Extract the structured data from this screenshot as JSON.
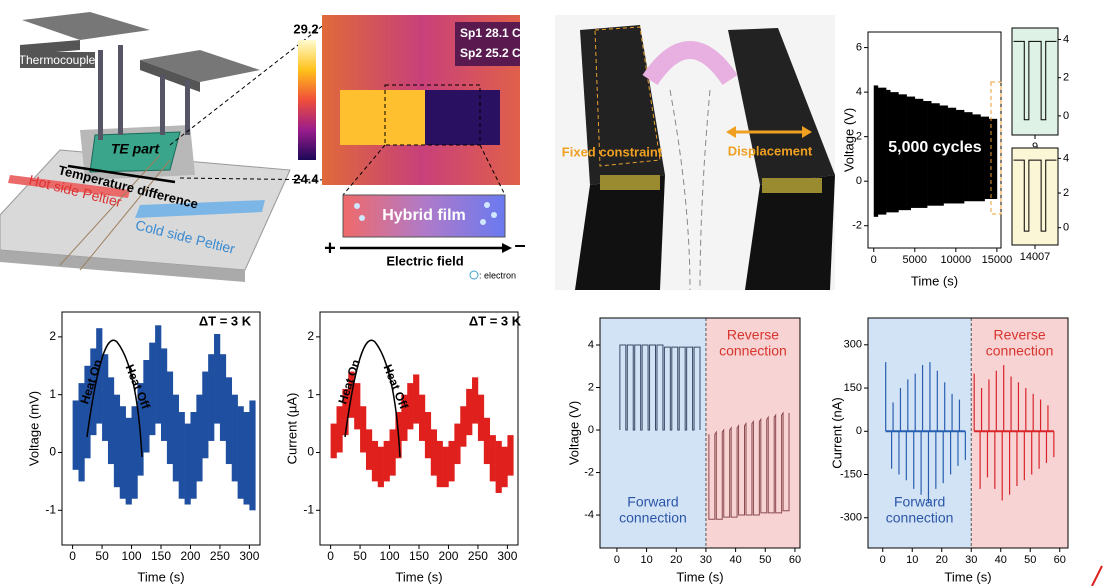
{
  "chart_data": [
    {
      "type": "band",
      "ylabel": "Voltage (V)",
      "xlabel": "Time (s)",
      "annotation": "5,000 cycles",
      "color": "#000000",
      "xlim": [
        -700,
        15500
      ],
      "ylim": [
        -3,
        6.7
      ],
      "xticks": [
        0,
        5000,
        10000,
        15000
      ],
      "yticks": [
        -2,
        0,
        2,
        4,
        6
      ],
      "x": [
        0,
        500,
        1000,
        1500,
        2000,
        2500,
        3000,
        3500,
        4000,
        4500,
        5000,
        5500,
        6000,
        6500,
        7000,
        7500,
        8000,
        8500,
        9000,
        9500,
        10000,
        10500,
        11000,
        11500,
        12000,
        12500,
        13000,
        13500,
        14000,
        14500
      ],
      "upper": [
        4.3,
        4.2,
        4.2,
        4.1,
        4.0,
        4.0,
        3.9,
        3.9,
        3.8,
        3.8,
        3.7,
        3.7,
        3.6,
        3.6,
        3.5,
        3.5,
        3.4,
        3.4,
        3.3,
        3.3,
        3.2,
        3.2,
        3.1,
        3.1,
        3.0,
        3.0,
        2.9,
        2.9,
        2.8,
        2.8
      ],
      "lower": [
        -1.6,
        -1.5,
        -1.5,
        -1.4,
        -1.4,
        -1.4,
        -1.3,
        -1.3,
        -1.3,
        -1.2,
        -1.2,
        -1.2,
        -1.2,
        -1.1,
        -1.1,
        -1.1,
        -1.1,
        -1.0,
        -1.0,
        -1.0,
        -1.0,
        -1.0,
        -0.9,
        -0.9,
        -0.9,
        -0.9,
        -0.9,
        -0.8,
        -0.8,
        -0.8
      ]
    },
    {
      "type": "line",
      "color": "#000000",
      "background": "#dff2e6",
      "xlim": [
        7.5,
        10.5
      ],
      "ylim": [
        -1,
        4.6
      ],
      "xticks": [
        9
      ],
      "yticks": [
        0,
        2,
        4
      ],
      "x": [
        7.6,
        8.3,
        8.3,
        8.6,
        8.6,
        9.4,
        9.4,
        9.7,
        9.7,
        10.4
      ],
      "values": [
        3.9,
        3.9,
        -0.2,
        -0.2,
        3.9,
        3.9,
        -0.2,
        -0.2,
        3.9,
        3.9
      ]
    },
    {
      "type": "line",
      "color": "#000000",
      "background": "#fbf6d5",
      "xlim": [
        14005.5,
        14008.5
      ],
      "ylim": [
        -1,
        4.6
      ],
      "xticks": [
        14007
      ],
      "yticks": [
        0,
        2,
        4
      ],
      "x": [
        14005.6,
        14006.3,
        14006.3,
        14006.6,
        14006.6,
        14007.4,
        14007.4,
        14007.7,
        14007.7,
        14008.4
      ],
      "values": [
        3.9,
        3.9,
        -0.2,
        -0.2,
        3.9,
        3.9,
        -0.2,
        -0.2,
        3.9,
        3.9
      ]
    },
    {
      "type": "band",
      "ylabel": "Voltage (mV)",
      "xlabel": "Time (s)",
      "annotation": "ΔT = 3 K",
      "arrow_labels": [
        "Heat On",
        "Heat Off"
      ],
      "color": "#1f4fa0",
      "xlim": [
        -18,
        318
      ],
      "ylim": [
        -1.6,
        2.43
      ],
      "xticks": [
        0,
        50,
        100,
        150,
        200,
        250,
        300
      ],
      "yticks": [
        -1,
        0,
        1,
        2
      ],
      "x": [
        0,
        10,
        20,
        30,
        40,
        50,
        60,
        70,
        80,
        90,
        100,
        110,
        120,
        130,
        140,
        150,
        160,
        170,
        180,
        190,
        200,
        210,
        220,
        230,
        240,
        250,
        260,
        270,
        280,
        290,
        300
      ],
      "upper": [
        0.9,
        1.2,
        1.5,
        1.8,
        2.15,
        1.7,
        1.3,
        1.0,
        0.8,
        0.6,
        0.8,
        1.2,
        1.6,
        1.9,
        2.2,
        1.8,
        1.4,
        1.0,
        0.7,
        0.5,
        0.7,
        1.0,
        1.4,
        1.7,
        2.05,
        1.7,
        1.3,
        1.0,
        0.8,
        0.7,
        0.9
      ],
      "lower": [
        -0.3,
        -0.5,
        -0.1,
        0.3,
        0.5,
        0.2,
        -0.2,
        -0.6,
        -0.8,
        -0.9,
        -0.8,
        -0.4,
        0.0,
        0.3,
        0.5,
        0.2,
        -0.2,
        -0.5,
        -0.8,
        -0.9,
        -0.8,
        -0.5,
        -0.1,
        0.2,
        0.5,
        0.2,
        -0.2,
        -0.5,
        -0.8,
        -0.9,
        -1.0
      ]
    },
    {
      "type": "band",
      "ylabel": "Current (µA)",
      "xlabel": "Time (s)",
      "annotation": "ΔT = 3 K",
      "arrow_labels": [
        "Heat On",
        "Heat Off"
      ],
      "color": "#e0201c",
      "xlim": [
        -18,
        318
      ],
      "ylim": [
        -1.6,
        2.43
      ],
      "xticks": [
        0,
        50,
        100,
        150,
        200,
        250,
        300
      ],
      "yticks": [
        -1,
        0,
        1,
        2
      ],
      "x": [
        0,
        10,
        20,
        30,
        40,
        50,
        60,
        70,
        80,
        90,
        100,
        110,
        120,
        130,
        140,
        150,
        160,
        170,
        180,
        190,
        200,
        210,
        220,
        230,
        240,
        250,
        260,
        270,
        280,
        290,
        300
      ],
      "upper": [
        0.5,
        0.8,
        1.1,
        1.4,
        1.2,
        0.8,
        0.4,
        0.2,
        0.1,
        0.2,
        0.4,
        0.7,
        1.0,
        1.2,
        1.35,
        1.0,
        0.7,
        0.4,
        0.2,
        0.1,
        0.2,
        0.5,
        0.8,
        1.1,
        1.3,
        1.0,
        0.6,
        0.3,
        0.2,
        0.1,
        0.3
      ],
      "lower": [
        -0.1,
        0.0,
        0.3,
        0.6,
        0.4,
        0.0,
        -0.3,
        -0.5,
        -0.6,
        -0.5,
        -0.4,
        -0.1,
        0.2,
        0.4,
        0.5,
        0.2,
        -0.1,
        -0.4,
        -0.6,
        -0.6,
        -0.5,
        -0.2,
        0.1,
        0.3,
        0.5,
        0.2,
        -0.2,
        -0.5,
        -0.7,
        -0.6,
        -0.4
      ]
    },
    {
      "type": "line",
      "ylabel": "Voltage (V)",
      "xlabel": "Time (s)",
      "split": 30,
      "region_labels": [
        [
          "Forward",
          "connection"
        ],
        [
          "Reverse",
          "connection"
        ]
      ],
      "region_colors": [
        "#d3e3f6",
        "#f8d3d4"
      ],
      "region_text_colors": [
        "#2a56a8",
        "#d8332c"
      ],
      "xlim": [
        -5.7,
        61.7
      ],
      "ylim": [
        -5.55,
        5.27
      ],
      "xticks": [
        0,
        10,
        20,
        30,
        40,
        50,
        60
      ],
      "yticks": [
        -4,
        -2,
        0,
        2,
        4
      ],
      "series": [
        {
          "color": "#3a4a66",
          "x": [
            1,
            1,
            3,
            3,
            3.5,
            3.5,
            5.5,
            5.5,
            6,
            6,
            8,
            8,
            8.5,
            8.5,
            10.5,
            10.5,
            11,
            11,
            13,
            13,
            13.5,
            13.5,
            15.5,
            15.5,
            16,
            16,
            18,
            18,
            18.5,
            18.5,
            20.5,
            20.5,
            21,
            21,
            23,
            23,
            23.5,
            23.5,
            25.5,
            25.5,
            26,
            26,
            28,
            28
          ],
          "values": [
            0,
            4,
            4,
            0,
            0,
            4,
            4,
            0,
            0,
            4,
            4,
            0,
            0,
            4,
            4,
            0,
            0,
            4,
            4,
            0,
            0,
            4,
            4,
            0,
            0,
            3.9,
            3.9,
            0,
            0,
            3.9,
            3.9,
            0,
            0,
            3.9,
            3.9,
            0,
            0,
            3.9,
            3.9,
            0,
            0,
            3.9,
            3.9,
            0
          ]
        },
        {
          "color": "#8a4a4e",
          "x": [
            31,
            31,
            33,
            33,
            33.5,
            33.5,
            35.5,
            35.5,
            36,
            36,
            38,
            38,
            38.5,
            38.5,
            40.5,
            40.5,
            41,
            41,
            43,
            43,
            43.5,
            43.5,
            45.5,
            45.5,
            46,
            46,
            48,
            48,
            48.5,
            48.5,
            50.5,
            50.5,
            51,
            51,
            53,
            53,
            53.5,
            53.5,
            55.5,
            55.5,
            56,
            56,
            58,
            58
          ],
          "values": [
            -0.2,
            -4.2,
            -4.2,
            -0.2,
            -0.1,
            -4.2,
            -4.2,
            -0.1,
            0,
            -4.1,
            -4.1,
            0,
            0.1,
            -4.1,
            -4.1,
            0.1,
            0.2,
            -4.0,
            -4.0,
            0.2,
            0.3,
            -4.0,
            -4.0,
            0.3,
            0.4,
            -4.0,
            -4.0,
            0.4,
            0.5,
            -3.9,
            -3.9,
            0.5,
            0.6,
            -3.9,
            -3.9,
            0.6,
            0.7,
            -3.9,
            -3.9,
            0.7,
            0.8,
            -3.8,
            -3.8,
            0.8
          ]
        }
      ]
    },
    {
      "type": "spike",
      "ylabel": "Current (nA)",
      "xlabel": "Time (s)",
      "split": 30,
      "region_labels": [
        [
          "Forward",
          "connection"
        ],
        [
          "Reverse",
          "connection"
        ]
      ],
      "region_colors": [
        "#d3e3f6",
        "#f8d3d4"
      ],
      "region_text_colors": [
        "#2a56a8",
        "#d8332c"
      ],
      "xlim": [
        -5,
        62.8
      ],
      "ylim": [
        -405,
        393
      ],
      "xticks": [
        0,
        10,
        20,
        30,
        40,
        50,
        60
      ],
      "yticks": [
        -300,
        -150,
        0,
        150,
        300
      ],
      "series": [
        {
          "color": "#2a5fb0",
          "x": [
            1,
            3,
            3.5,
            5.5,
            6,
            8,
            8.5,
            10.5,
            11,
            13,
            13.5,
            15.5,
            16,
            18,
            18.5,
            20.5,
            21,
            23,
            23.5,
            25.5,
            26,
            28
          ],
          "values": [
            240,
            -130,
            100,
            -150,
            150,
            -170,
            180,
            -200,
            200,
            -220,
            230,
            -250,
            240,
            -200,
            210,
            -180,
            170,
            -150,
            130,
            -120,
            110,
            -100
          ]
        },
        {
          "color": "#d8242a",
          "x": [
            31,
            33,
            33.5,
            35.5,
            36,
            38,
            38.5,
            40.5,
            41,
            43,
            43.5,
            45.5,
            46,
            48,
            48.5,
            50.5,
            51,
            53,
            53.5,
            55.5,
            56,
            58
          ],
          "values": [
            200,
            -200,
            150,
            -160,
            180,
            -200,
            210,
            -240,
            230,
            -220,
            190,
            -190,
            170,
            -170,
            150,
            -150,
            130,
            -130,
            110,
            -110,
            90,
            -90
          ]
        }
      ]
    }
  ],
  "diagrams": {
    "setup": {
      "thermocouple": "Thermocouple",
      "te_part": "TE part",
      "temperature_difference": "Temperature difference",
      "hot_side": "Hot side Peltier",
      "cold_side": "Cold side Peltier"
    },
    "thermal": {
      "colorbar": [
        24.4,
        29.2
      ],
      "sp1": "Sp1  28.1 C°",
      "sp2": "Sp2  25.2 C°",
      "film": "Hybrid film",
      "plus": "+",
      "minus": "–",
      "field": "Electric field",
      "electron": ": electron"
    },
    "bending": {
      "fixed": "Fixed constraint",
      "displacement": "Displacement"
    }
  }
}
